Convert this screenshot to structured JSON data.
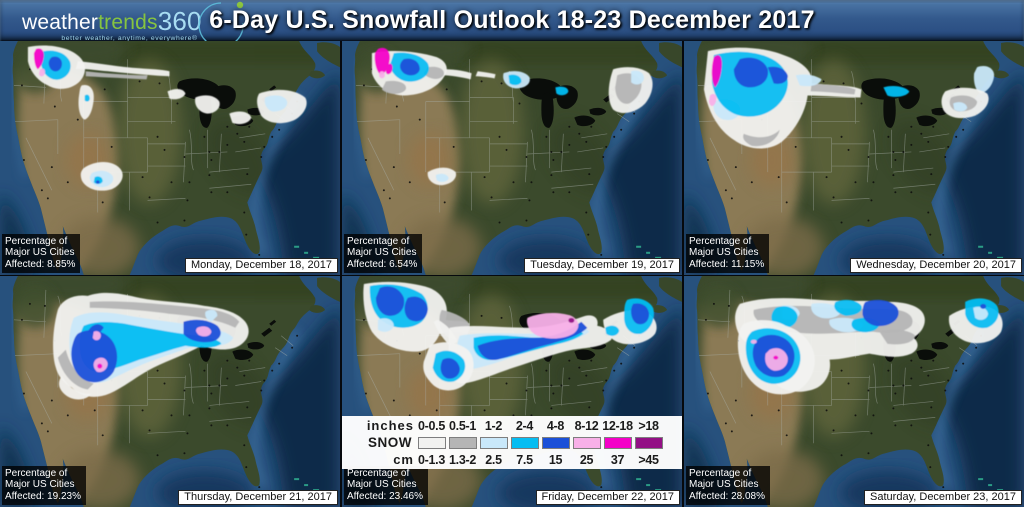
{
  "header": {
    "logo_part1": "weather",
    "logo_part2": "trends",
    "logo_part3": "360",
    "tagline": "better weather, anytime, everywhere®",
    "title": "6-Day U.S. Snowfall Outlook 18-23 December 2017",
    "bar_color": "#33598c"
  },
  "legend": {
    "unit_top": "inches",
    "series_label": "SNOW",
    "unit_bottom": "cm",
    "inches": [
      "0-0.5",
      "0.5-1",
      "1-2",
      "2-4",
      "4-8",
      "8-12",
      "12-18",
      ">18"
    ],
    "cm": [
      "0-1.3",
      "1.3-2",
      "2.5",
      "7.5",
      "15",
      "25",
      "37",
      ">45"
    ],
    "colors": [
      "#f2f2f0",
      "#b5b5b5",
      "#c9e8fa",
      "#06bdf2",
      "#1b50d8",
      "#f8b0e8",
      "#f400c8",
      "#930f85"
    ]
  },
  "panels": [
    {
      "date_label": "Monday, December 18, 2017",
      "affected_text": "Percentage of\nMajor US Cities\nAffected: 8.85%"
    },
    {
      "date_label": "Tuesday, December 19, 2017",
      "affected_text": "Percentage of\nMajor US Cities\nAffected: 6.54%"
    },
    {
      "date_label": "Wednesday, December 20, 2017",
      "affected_text": "Percentage of\nMajor US Cities\nAffected: 11.15%"
    },
    {
      "date_label": "Thursday, December 21, 2017",
      "affected_text": "Percentage of\nMajor US Cities\nAffected: 19.23%"
    },
    {
      "date_label": "Friday, December 22, 2017",
      "affected_text": "Percentage of\nMajor US Cities\nAffected: 23.46%"
    },
    {
      "date_label": "Saturday, December 23, 2017",
      "affected_text": "Percentage of\nMajor US Cities\nAffected: 28.08%"
    }
  ]
}
